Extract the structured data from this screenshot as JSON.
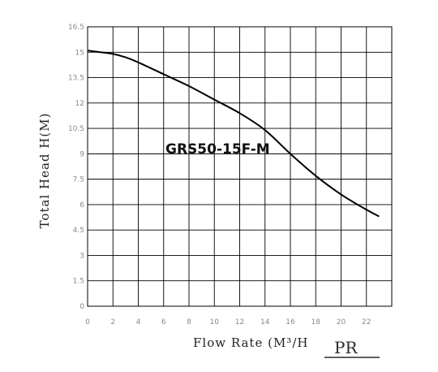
{
  "chart_data": {
    "type": "line",
    "title": "",
    "xlabel": "Flow Rate (M³/H",
    "ylabel": "Total Head H(M)",
    "xlim": [
      0,
      24
    ],
    "ylim": [
      0,
      16.5
    ],
    "x_ticks": [
      "0",
      "2",
      "4",
      "6",
      "8",
      "10",
      "12",
      "14",
      "16",
      "18",
      "20",
      "22"
    ],
    "y_ticks": [
      "0",
      "1.5",
      "3",
      "4.5",
      "6",
      "7.5",
      "9",
      "10.5",
      "12",
      "13.5",
      "15",
      "16.5"
    ],
    "grid": true,
    "series": [
      {
        "name": "GRS50-15F-M",
        "color": "#000000",
        "x": [
          0,
          1,
          2,
          3,
          4,
          6,
          8,
          10,
          12,
          14,
          16,
          18,
          20,
          22,
          23
        ],
        "y": [
          15.1,
          15.0,
          14.9,
          14.7,
          14.4,
          13.7,
          13.0,
          12.2,
          11.4,
          10.4,
          9.0,
          7.7,
          6.6,
          5.7,
          5.3
        ]
      }
    ]
  },
  "logo": {
    "text": "PR"
  }
}
